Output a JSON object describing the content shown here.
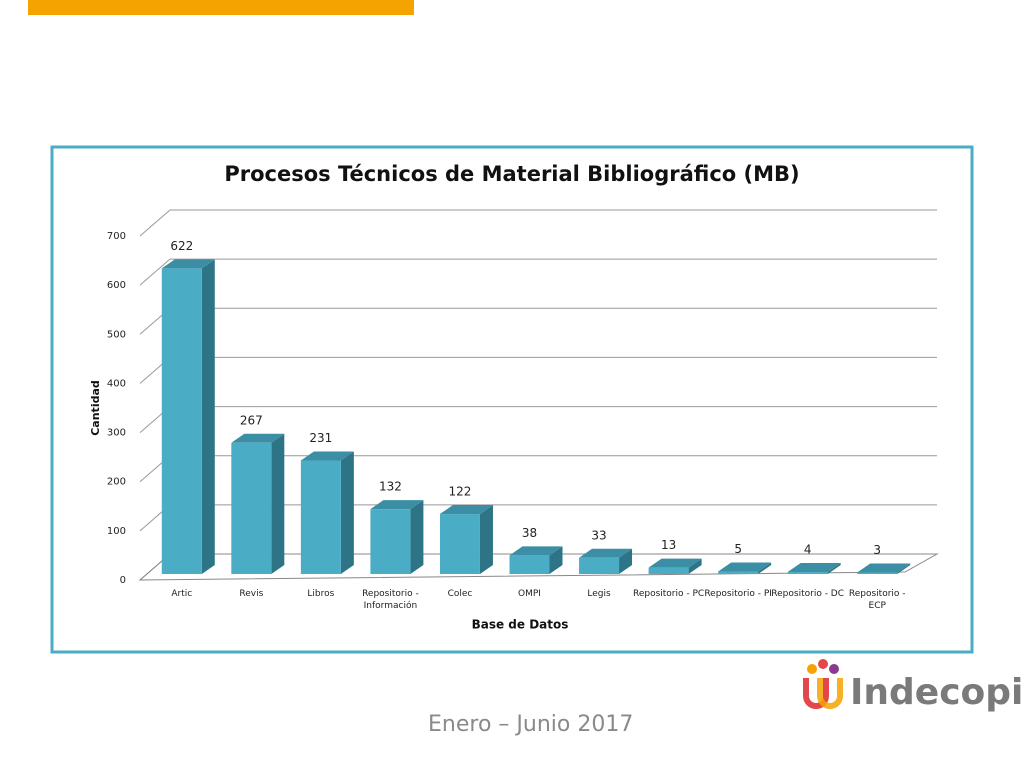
{
  "chart_data": {
    "type": "bar3d",
    "title": "Procesos Técnicos de Material Bibliográfico (MB)",
    "x_label": "Base de Datos",
    "y_label": "Cantidad",
    "categories": [
      "Artic",
      "Revis",
      "Libros",
      "Repositorio - Información",
      "Colec",
      "OMPI",
      "Legis",
      "Repositorio - PC",
      "Repositorio - PI",
      "Repositorio - DC",
      "Repositorio - ECP"
    ],
    "values": [
      622,
      267,
      231,
      132,
      122,
      38,
      33,
      13,
      5,
      4,
      3
    ],
    "color": "#4bacc6",
    "ylim": [
      0,
      700
    ],
    "yticks": [
      0,
      100,
      200,
      300,
      400,
      500,
      600,
      700
    ],
    "grid": true
  },
  "footer": {
    "period": "Enero – Junio 2017",
    "logo": "Indecopi"
  }
}
